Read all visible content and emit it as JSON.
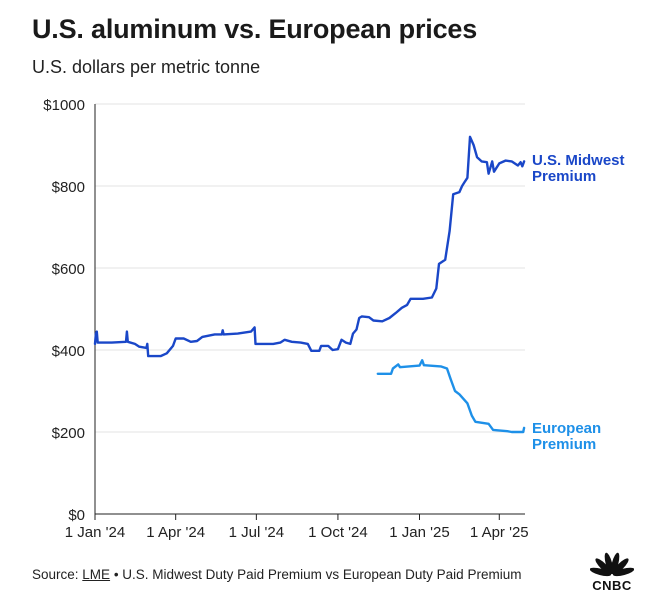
{
  "title": "U.S. aluminum vs. European prices",
  "subtitle": "U.S. dollars per metric tonne",
  "footer": {
    "source_label": "Source:",
    "source_link": "LME",
    "source_rest": "• U.S. Midwest Duty Paid Premium vs European Duty Paid Premium"
  },
  "logo_text": "CNBC",
  "chart_data": {
    "type": "line",
    "title": "U.S. aluminum vs. European prices",
    "subtitle": "U.S. dollars per metric tonne",
    "x_ticks": [
      "1 Jan '24",
      "1 Apr '24",
      "1 Jul '24",
      "1 Oct '24",
      "1 Jan '25",
      "1 Apr '25"
    ],
    "y_ticks": [
      "$0",
      "$200",
      "$400",
      "$600",
      "$800",
      "$1000"
    ],
    "ylim": [
      0,
      1000
    ],
    "xlim": [
      "2024-01-01",
      "2025-04-30"
    ],
    "grid": true,
    "series": [
      {
        "name": "U.S. Midwest Premium",
        "label_lines": [
          "U.S. Midwest",
          "Premium"
        ],
        "color": "#1a47c8",
        "points": [
          [
            "2024-01-01",
            415
          ],
          [
            "2024-01-02",
            440
          ],
          [
            "2024-01-03",
            445
          ],
          [
            "2024-01-04",
            418
          ],
          [
            "2024-01-20",
            418
          ],
          [
            "2024-02-05",
            420
          ],
          [
            "2024-02-06",
            445
          ],
          [
            "2024-02-07",
            420
          ],
          [
            "2024-02-15",
            415
          ],
          [
            "2024-02-20",
            408
          ],
          [
            "2024-02-28",
            405
          ],
          [
            "2024-02-29",
            415
          ],
          [
            "2024-03-01",
            385
          ],
          [
            "2024-03-15",
            385
          ],
          [
            "2024-03-22",
            392
          ],
          [
            "2024-03-29",
            410
          ],
          [
            "2024-04-01",
            428
          ],
          [
            "2024-04-10",
            428
          ],
          [
            "2024-04-18",
            420
          ],
          [
            "2024-04-25",
            422
          ],
          [
            "2024-05-01",
            432
          ],
          [
            "2024-05-15",
            438
          ],
          [
            "2024-05-23",
            438
          ],
          [
            "2024-05-24",
            448
          ],
          [
            "2024-05-25",
            438
          ],
          [
            "2024-06-10",
            440
          ],
          [
            "2024-06-25",
            445
          ],
          [
            "2024-06-29",
            455
          ],
          [
            "2024-06-30",
            415
          ],
          [
            "2024-07-20",
            415
          ],
          [
            "2024-07-28",
            418
          ],
          [
            "2024-08-02",
            425
          ],
          [
            "2024-08-10",
            420
          ],
          [
            "2024-08-20",
            418
          ],
          [
            "2024-08-28",
            415
          ],
          [
            "2024-09-01",
            398
          ],
          [
            "2024-09-10",
            398
          ],
          [
            "2024-09-12",
            410
          ],
          [
            "2024-09-20",
            410
          ],
          [
            "2024-09-25",
            400
          ],
          [
            "2024-10-01",
            402
          ],
          [
            "2024-10-05",
            425
          ],
          [
            "2024-10-10",
            418
          ],
          [
            "2024-10-15",
            415
          ],
          [
            "2024-10-18",
            440
          ],
          [
            "2024-10-22",
            450
          ],
          [
            "2024-10-25",
            478
          ],
          [
            "2024-10-28",
            482
          ],
          [
            "2024-11-05",
            480
          ],
          [
            "2024-11-10",
            472
          ],
          [
            "2024-11-20",
            470
          ],
          [
            "2024-11-28",
            478
          ],
          [
            "2024-12-05",
            490
          ],
          [
            "2024-12-12",
            503
          ],
          [
            "2024-12-18",
            510
          ],
          [
            "2024-12-22",
            525
          ],
          [
            "2025-01-05",
            525
          ],
          [
            "2025-01-15",
            528
          ],
          [
            "2025-01-20",
            550
          ],
          [
            "2025-01-23",
            610
          ],
          [
            "2025-01-30",
            620
          ],
          [
            "2025-02-04",
            690
          ],
          [
            "2025-02-08",
            780
          ],
          [
            "2025-02-15",
            785
          ],
          [
            "2025-02-18",
            800
          ],
          [
            "2025-02-21",
            810
          ],
          [
            "2025-02-24",
            820
          ],
          [
            "2025-02-27",
            920
          ],
          [
            "2025-03-03",
            900
          ],
          [
            "2025-03-07",
            870
          ],
          [
            "2025-03-12",
            860
          ],
          [
            "2025-03-18",
            858
          ],
          [
            "2025-03-20",
            830
          ],
          [
            "2025-03-24",
            860
          ],
          [
            "2025-03-26",
            835
          ],
          [
            "2025-04-01",
            855
          ],
          [
            "2025-04-08",
            862
          ],
          [
            "2025-04-15",
            860
          ],
          [
            "2025-04-22",
            850
          ],
          [
            "2025-04-25",
            858
          ],
          [
            "2025-04-27",
            848
          ],
          [
            "2025-04-29",
            860
          ]
        ]
      },
      {
        "name": "European Premium",
        "label_lines": [
          "European",
          "Premium"
        ],
        "color": "#1e90e8",
        "points": [
          [
            "2024-11-15",
            342
          ],
          [
            "2024-11-30",
            342
          ],
          [
            "2024-12-02",
            355
          ],
          [
            "2024-12-08",
            365
          ],
          [
            "2024-12-10",
            358
          ],
          [
            "2024-12-20",
            360
          ],
          [
            "2025-01-01",
            362
          ],
          [
            "2025-01-04",
            375
          ],
          [
            "2025-01-06",
            363
          ],
          [
            "2025-01-25",
            360
          ],
          [
            "2025-02-01",
            355
          ],
          [
            "2025-02-05",
            330
          ],
          [
            "2025-02-10",
            300
          ],
          [
            "2025-02-15",
            292
          ],
          [
            "2025-02-24",
            270
          ],
          [
            "2025-03-01",
            240
          ],
          [
            "2025-03-05",
            225
          ],
          [
            "2025-03-20",
            220
          ],
          [
            "2025-03-25",
            205
          ],
          [
            "2025-04-10",
            202
          ],
          [
            "2025-04-15",
            200
          ],
          [
            "2025-04-28",
            200
          ],
          [
            "2025-04-29",
            210
          ]
        ]
      }
    ]
  }
}
